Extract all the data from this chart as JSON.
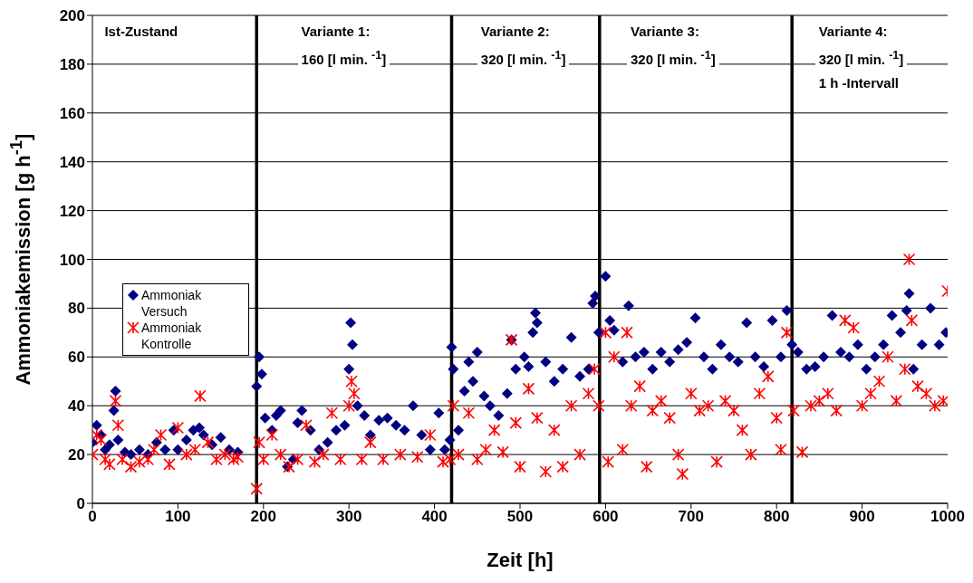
{
  "chart_data": {
    "type": "scatter",
    "xlabel": "Zeit [h]",
    "ylabel": "Ammoniakemission [g h$^{-1}$]",
    "xlim": [
      0,
      1000
    ],
    "xticks": [
      0,
      100,
      200,
      300,
      400,
      500,
      600,
      700,
      800,
      900,
      1000
    ],
    "ylim": [
      0,
      200
    ],
    "yticks": [
      0,
      20,
      40,
      60,
      80,
      100,
      120,
      140,
      160,
      180,
      200
    ],
    "grid": "y",
    "legend": "left",
    "annotations": [
      "Ist-Zustand",
      "Variante 1:\n160 [l min. $^{-1}$]",
      "Variante 2:\n320 [l min. $^{-1}$]",
      "Variante 3:\n320 [l min. $^{-1}$]",
      "Variante 4:\n320 [l min. $^{-1}$]\n1 h -Intervall"
    ],
    "ref_lines": [
      {
        "axis": "x",
        "value": 192,
        "color": "#000000"
      },
      {
        "axis": "x",
        "value": 420,
        "color": "#000000"
      },
      {
        "axis": "x",
        "value": 593,
        "color": "#000000"
      },
      {
        "axis": "x",
        "value": 818,
        "color": "#000000"
      }
    ],
    "series": [
      {
        "name": "Ammoniak Versuch",
        "color": "#000080",
        "marker": "diamond",
        "x": [
          0,
          5,
          10,
          15,
          20,
          25,
          27,
          30,
          38,
          45,
          55,
          65,
          75,
          85,
          95,
          100,
          110,
          118,
          125,
          130,
          140,
          150,
          160,
          170,
          192,
          195,
          198,
          202,
          210,
          215,
          220,
          228,
          235,
          240,
          245,
          255,
          265,
          275,
          285,
          295,
          300,
          302,
          304,
          310,
          318,
          325,
          335,
          345,
          355,
          365,
          375,
          385,
          395,
          405,
          412,
          418,
          420,
          422,
          428,
          435,
          440,
          445,
          450,
          458,
          465,
          475,
          485,
          490,
          495,
          505,
          510,
          515,
          518,
          520,
          530,
          540,
          550,
          560,
          570,
          580,
          585,
          588,
          592,
          600,
          605,
          610,
          620,
          627,
          635,
          645,
          655,
          665,
          675,
          685,
          695,
          705,
          715,
          725,
          735,
          745,
          755,
          765,
          775,
          785,
          795,
          805,
          812,
          818,
          825,
          835,
          845,
          855,
          865,
          875,
          885,
          895,
          905,
          915,
          925,
          935,
          945,
          952,
          955,
          960,
          970,
          980,
          990,
          998
        ],
        "values": [
          25,
          32,
          28,
          22,
          24,
          38,
          46,
          26,
          21,
          20,
          22,
          20,
          25,
          22,
          30,
          22,
          26,
          30,
          31,
          28,
          24,
          27,
          22,
          21,
          48,
          60,
          53,
          35,
          30,
          36,
          38,
          15,
          18,
          33,
          38,
          30,
          22,
          25,
          30,
          32,
          55,
          74,
          65,
          40,
          36,
          28,
          34,
          35,
          32,
          30,
          40,
          28,
          22,
          37,
          22,
          26,
          64,
          55,
          30,
          46,
          58,
          50,
          62,
          44,
          40,
          36,
          45,
          67,
          55,
          60,
          56,
          70,
          78,
          74,
          58,
          50,
          55,
          68,
          52,
          55,
          82,
          85,
          70,
          93,
          75,
          71,
          58,
          81,
          60,
          62,
          55,
          62,
          58,
          63,
          66,
          76,
          60,
          55,
          65,
          60,
          58,
          74,
          60,
          56,
          75,
          60,
          79,
          65,
          62,
          55,
          56,
          60,
          77,
          62,
          60,
          65,
          55,
          60,
          65,
          77,
          70,
          79,
          86,
          55,
          65,
          80,
          65,
          70
        ]
      },
      {
        "name": "Ammoniak Kontrolle",
        "color": "#ff0000",
        "marker": "cross",
        "x": [
          0,
          5,
          10,
          15,
          20,
          27,
          30,
          35,
          45,
          55,
          65,
          72,
          80,
          90,
          100,
          110,
          120,
          126,
          135,
          145,
          155,
          165,
          170,
          192,
          195,
          200,
          210,
          220,
          230,
          240,
          250,
          260,
          270,
          280,
          290,
          300,
          303,
          306,
          315,
          325,
          340,
          360,
          380,
          395,
          410,
          418,
          422,
          428,
          440,
          450,
          460,
          470,
          480,
          490,
          495,
          500,
          510,
          520,
          530,
          540,
          550,
          560,
          570,
          580,
          587,
          592,
          600,
          603,
          610,
          620,
          625,
          630,
          640,
          648,
          655,
          665,
          675,
          685,
          690,
          700,
          710,
          720,
          730,
          740,
          750,
          760,
          770,
          780,
          790,
          800,
          805,
          812,
          820,
          830,
          840,
          850,
          860,
          870,
          880,
          890,
          900,
          910,
          920,
          930,
          940,
          950,
          955,
          958,
          965,
          975,
          985,
          995,
          1000
        ],
        "values": [
          20,
          28,
          26,
          18,
          16,
          42,
          32,
          18,
          15,
          17,
          18,
          22,
          28,
          16,
          31,
          20,
          22,
          44,
          25,
          18,
          20,
          18,
          19,
          6,
          25,
          18,
          28,
          20,
          15,
          18,
          32,
          17,
          20,
          37,
          18,
          40,
          50,
          45,
          18,
          25,
          18,
          20,
          19,
          28,
          17,
          18,
          40,
          20,
          37,
          18,
          22,
          30,
          21,
          67,
          33,
          15,
          47,
          35,
          13,
          30,
          15,
          40,
          20,
          45,
          55,
          40,
          70,
          17,
          60,
          22,
          70,
          40,
          48,
          15,
          38,
          42,
          35,
          20,
          12,
          45,
          38,
          40,
          17,
          42,
          38,
          30,
          20,
          45,
          52,
          35,
          22,
          70,
          38,
          21,
          40,
          42,
          45,
          38,
          75,
          72,
          40,
          45,
          50,
          60,
          42,
          55,
          100,
          75,
          48,
          45,
          40,
          42,
          87
        ]
      }
    ]
  }
}
